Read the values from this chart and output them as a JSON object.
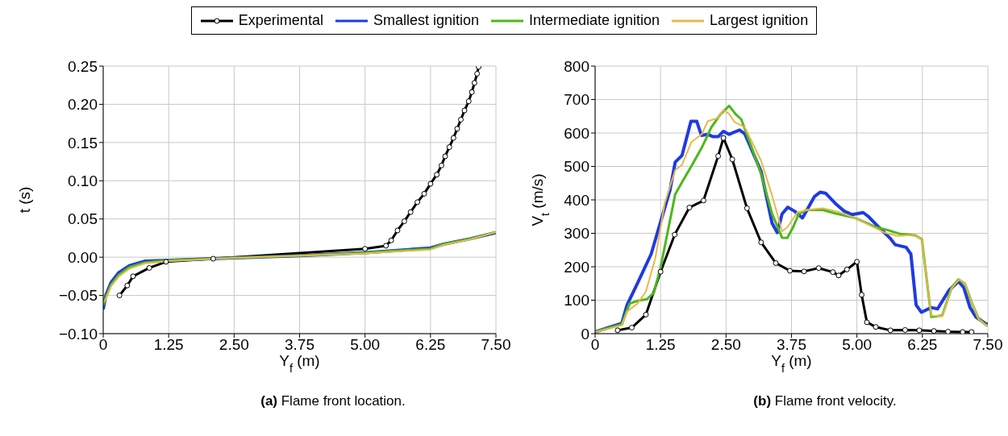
{
  "chart_data": [
    {
      "type": "line",
      "xlabel": "Y$_{f}$ (m)",
      "ylabel": "t (s)",
      "annotations": [
        "(a) Flame front location."
      ],
      "xlim": [
        0,
        7.5
      ],
      "ylim": [
        -0.1,
        0.25
      ],
      "xticks": [
        0,
        {
          "value": 1.25,
          "label": "1.25"
        },
        {
          "value": 2.5,
          "label": "2.50"
        },
        {
          "value": 3.75,
          "label": "3.75"
        },
        {
          "value": 5,
          "label": "5.00"
        },
        {
          "value": 6.25,
          "label": "6.25"
        },
        {
          "value": 7.5,
          "label": "7.50"
        }
      ],
      "yticks": [
        {
          "value": -0.1,
          "label": "−0.10"
        },
        {
          "value": -0.05,
          "label": "−0.05"
        },
        {
          "value": 0,
          "label": "0.00"
        },
        {
          "value": 0.05,
          "label": "0.05"
        },
        {
          "value": 0.1,
          "label": "0.10"
        },
        {
          "value": 0.15,
          "label": "0.15"
        },
        {
          "value": 0.2,
          "label": "0.20"
        },
        {
          "value": 0.25,
          "label": "0.25"
        }
      ],
      "grid": true,
      "legend": "top",
      "line_style": "solid",
      "series": [
        {
          "name": "Experimental",
          "color": "#000000",
          "marker": "circle",
          "x": [
            0.31,
            0.46,
            0.57,
            0.88,
            1.2,
            2.1,
            5.0,
            5.4,
            5.5,
            5.62,
            5.75,
            5.87,
            6.0,
            6.13,
            6.25,
            6.37,
            6.46,
            6.53,
            6.61,
            6.69,
            6.76,
            6.83,
            6.9,
            6.98,
            7.04,
            7.09,
            7.14,
            7.17
          ],
          "values": [
            -0.05,
            -0.037,
            -0.025,
            -0.014,
            -0.006,
            -0.002,
            0.011,
            0.015,
            0.022,
            0.035,
            0.047,
            0.059,
            0.072,
            0.083,
            0.096,
            0.108,
            0.12,
            0.132,
            0.144,
            0.156,
            0.168,
            0.18,
            0.192,
            0.204,
            0.216,
            0.228,
            0.24,
            0.249
          ]
        },
        {
          "name": "Smallest ignition",
          "color": "#1f3be0",
          "marker": "none",
          "x": [
            0,
            0.05,
            0.15,
            0.3,
            0.5,
            0.8,
            1.25,
            2.5,
            3.75,
            5.0,
            6.25,
            6.5,
            7.0,
            7.5
          ],
          "values": [
            -0.068,
            -0.05,
            -0.033,
            -0.02,
            -0.011,
            -0.005,
            -0.004,
            -0.001,
            0.002,
            0.006,
            0.012,
            0.017,
            0.024,
            0.032
          ]
        },
        {
          "name": "Intermediate ignition",
          "color": "#4cb81a",
          "marker": "none",
          "x": [
            0,
            0.05,
            0.15,
            0.3,
            0.5,
            0.8,
            1.25,
            2.5,
            3.75,
            5.0,
            6.25,
            6.5,
            7.0,
            7.5
          ],
          "values": [
            -0.063,
            -0.052,
            -0.036,
            -0.023,
            -0.013,
            -0.007,
            -0.004,
            -0.001,
            0.002,
            0.006,
            0.011,
            0.017,
            0.024,
            0.033
          ]
        },
        {
          "name": "Largest ignition",
          "color": "#e8b84a",
          "marker": "none",
          "x": [
            0,
            0.05,
            0.15,
            0.3,
            0.5,
            0.8,
            1.25,
            2.5,
            3.75,
            5.0,
            6.25,
            6.5,
            7.0,
            7.5
          ],
          "values": [
            -0.06,
            -0.055,
            -0.038,
            -0.025,
            -0.015,
            -0.008,
            -0.005,
            -0.001,
            0.002,
            0.005,
            0.01,
            0.016,
            0.023,
            0.033
          ]
        }
      ]
    },
    {
      "type": "line",
      "xlabel": "Y$_{f}$ (m)",
      "ylabel": "V$_{t}$ (m/s)",
      "annotations": [
        "(b) Flame front velocity."
      ],
      "xlim": [
        0,
        7.5
      ],
      "ylim": [
        0,
        800
      ],
      "xticks": [
        0,
        {
          "value": 1.25,
          "label": "1.25"
        },
        {
          "value": 2.5,
          "label": "2.50"
        },
        {
          "value": 3.75,
          "label": "3.75"
        },
        {
          "value": 5,
          "label": "5.00"
        },
        {
          "value": 6.25,
          "label": "6.25"
        },
        {
          "value": 7.5,
          "label": "7.50"
        }
      ],
      "yticks": [
        0,
        100,
        200,
        300,
        400,
        500,
        600,
        700,
        800
      ],
      "grid": true,
      "line_style": "solid",
      "series": [
        {
          "color": "#000000",
          "marker": "circle",
          "x": [
            0.43,
            0.7,
            0.97,
            1.25,
            1.52,
            1.8,
            2.07,
            2.35,
            2.45,
            2.62,
            2.9,
            3.17,
            3.45,
            3.72,
            3.99,
            4.27,
            4.54,
            4.65,
            4.81,
            5.0,
            5.09,
            5.19,
            5.36,
            5.64,
            5.92,
            6.19,
            6.47,
            6.74,
            7.02,
            7.19
          ],
          "values": [
            10,
            18,
            57,
            185,
            296,
            377,
            398,
            531,
            585,
            521,
            375,
            273,
            211,
            188,
            186,
            196,
            184,
            174,
            192,
            215,
            116,
            34,
            20,
            10,
            11,
            10,
            8,
            6,
            5,
            5
          ]
        },
        {
          "color": "#1f3be0",
          "marker": "none",
          "x": [
            0,
            0.51,
            0.61,
            0.81,
            1.07,
            1.25,
            1.43,
            1.53,
            1.66,
            1.83,
            1.94,
            2.03,
            2.15,
            2.25,
            2.35,
            2.45,
            2.56,
            2.76,
            2.86,
            3.17,
            3.38,
            3.48,
            3.57,
            3.68,
            3.81,
            3.96,
            4.19,
            4.3,
            4.4,
            4.61,
            4.76,
            4.91,
            5.12,
            5.22,
            5.42,
            5.63,
            5.73,
            5.94,
            6.03,
            6.13,
            6.23,
            6.42,
            6.54,
            6.76,
            6.94,
            7.04,
            7.16,
            7.27,
            7.46,
            7.5
          ],
          "values": [
            5,
            31,
            86,
            151,
            238,
            334,
            429,
            513,
            533,
            635,
            635,
            593,
            596,
            589,
            589,
            605,
            596,
            609,
            597,
            485,
            330,
            302,
            358,
            378,
            366,
            346,
            410,
            423,
            420,
            386,
            366,
            356,
            362,
            350,
            318,
            286,
            266,
            258,
            238,
            86,
            64,
            78,
            74,
            130,
            156,
            138,
            78,
            50,
            30,
            28
          ]
        },
        {
          "color": "#4cb81a",
          "marker": "none",
          "x": [
            0,
            0.51,
            0.66,
            0.81,
            0.99,
            1.12,
            1.25,
            1.53,
            1.66,
            1.84,
            2.04,
            2.22,
            2.4,
            2.56,
            2.68,
            2.79,
            2.97,
            3.17,
            3.38,
            3.57,
            3.67,
            3.78,
            3.89,
            4.04,
            4.35,
            4.6,
            4.96,
            5.37,
            5.58,
            5.83,
            6.12,
            6.24,
            6.42,
            6.63,
            6.81,
            6.94,
            7.06,
            7.22,
            7.32,
            7.46,
            7.5
          ],
          "values": [
            5,
            28,
            90,
            98,
            103,
            122,
            198,
            417,
            453,
            501,
            557,
            617,
            657,
            681,
            657,
            641,
            565,
            477,
            358,
            287,
            286,
            318,
            358,
            370,
            370,
            359,
            346,
            318,
            310,
            298,
            294,
            282,
            50,
            54,
            138,
            162,
            150,
            82,
            46,
            26,
            24
          ]
        },
        {
          "color": "#e8b84a",
          "marker": "none",
          "x": [
            0,
            0.51,
            0.61,
            0.81,
            0.97,
            1.15,
            1.33,
            1.53,
            1.66,
            1.84,
            2.04,
            2.15,
            2.35,
            2.45,
            2.56,
            2.66,
            2.86,
            3.17,
            3.38,
            3.57,
            3.67,
            3.86,
            4.04,
            4.35,
            4.61,
            4.96,
            5.27,
            5.53,
            5.78,
            6.12,
            6.24,
            6.42,
            6.63,
            6.81,
            6.95,
            7.06,
            7.22,
            7.32,
            7.46,
            7.5
          ],
          "values": [
            5,
            25,
            66,
            90,
            126,
            226,
            390,
            489,
            505,
            573,
            597,
            635,
            645,
            669,
            657,
            633,
            617,
            517,
            413,
            306,
            318,
            362,
            370,
            375,
            366,
            346,
            322,
            302,
            292,
            296,
            280,
            54,
            52,
            136,
            162,
            150,
            82,
            44,
            26,
            24
          ]
        }
      ]
    }
  ]
}
